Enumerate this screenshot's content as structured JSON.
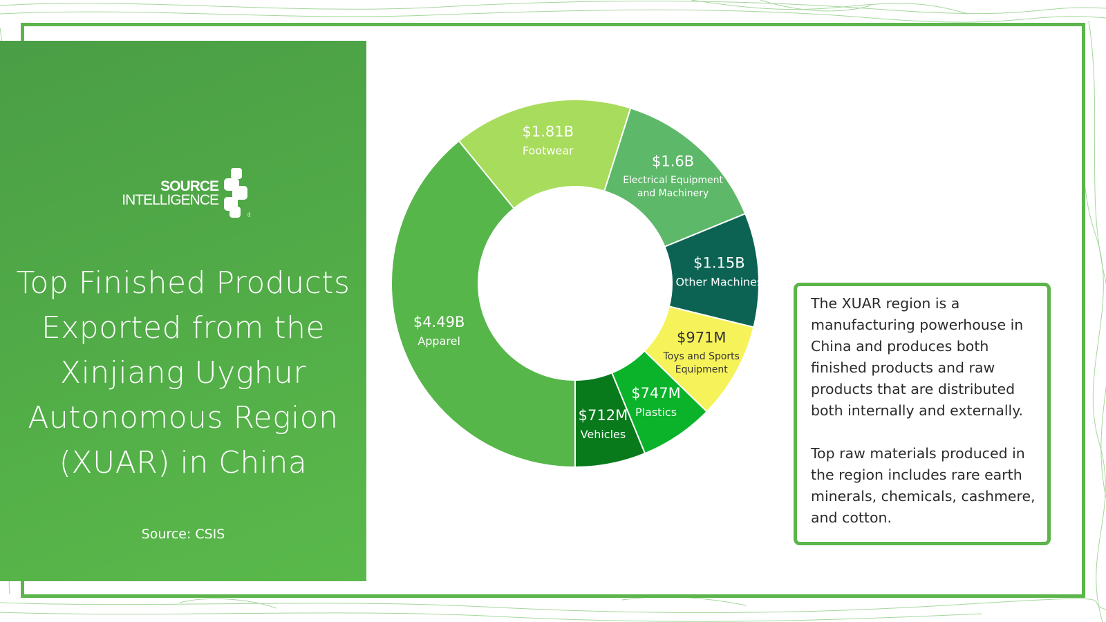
{
  "brand": {
    "logo_line1": "SOURCE",
    "logo_line2": "INTELLIGENCE",
    "logo_mark": "®",
    "accent_color": "#5bb54a"
  },
  "header": {
    "title": "Top Finished Products Exported from the Xinjiang Uyghur Autonomous Region (XUAR) in China",
    "source": "Source: CSIS"
  },
  "chart_data": {
    "type": "pie",
    "variant": "donut",
    "title": "",
    "series": [
      {
        "label": "Apparel",
        "display_value": "$4.49B",
        "value": 4.49,
        "color": "#56b64a",
        "text_color": "#ffffff"
      },
      {
        "label": "Footwear",
        "display_value": "$1.81B",
        "value": 1.81,
        "color": "#a8dc5c",
        "text_color": "#ffffff"
      },
      {
        "label": "Electrical Equipment and Machinery",
        "display_value": "$1.6B",
        "value": 1.6,
        "color": "#5db869",
        "text_color": "#ffffff"
      },
      {
        "label": "Other Machines",
        "display_value": "$1.15B",
        "value": 1.15,
        "color": "#0c6353",
        "text_color": "#ffffff"
      },
      {
        "label": "Toys and Sports Equipment",
        "display_value": "$971M",
        "value": 0.971,
        "color": "#f6f25a",
        "text_color": "#333333"
      },
      {
        "label": "Plastics",
        "display_value": "$747M",
        "value": 0.747,
        "color": "#0ab32a",
        "text_color": "#ffffff"
      },
      {
        "label": "Vehicles",
        "display_value": "$712M",
        "value": 0.712,
        "color": "#087a1c",
        "text_color": "#ffffff"
      }
    ],
    "start_angle_deg": 90,
    "direction": "clockwise",
    "legend": "none",
    "labels": "on-slice"
  },
  "info_box": {
    "paragraph1": "The XUAR region is a manufacturing powerhouse in China and produces both finished products and raw products that are distributed both internally and externally.",
    "paragraph2": "Top raw materials produced in the region includes rare earth minerals, chemicals, cashmere, and cotton."
  }
}
